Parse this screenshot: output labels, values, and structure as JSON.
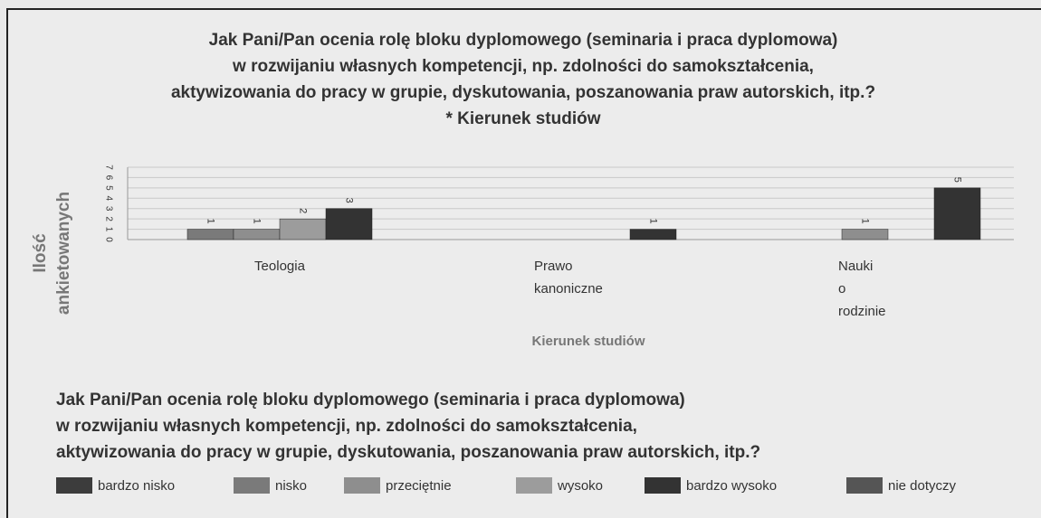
{
  "chart_data": {
    "type": "bar",
    "title": [
      "Jak Pani/Pan ocenia rolę bloku dyplomowego (seminaria i praca dyplomowa)",
      "w rozwijaniu własnych kompetencji, np. zdolności do samokształcenia,",
      "aktywizowania do pracy w grupie, dyskutowania, poszanowania praw autorskich, itp.?",
      "* Kierunek studiów"
    ],
    "y_axis_label": [
      "Ilość",
      "ankietowanych"
    ],
    "x_axis_label": "Kierunek studiów",
    "legend_title": [
      "Jak Pani/Pan ocenia rolę bloku dyplomowego (seminaria i praca dyplomowa)",
      "w rozwijaniu własnych kompetencji, np. zdolności do samokształcenia,",
      "aktywizowania do pracy w grupie, dyskutowania, poszanowania praw autorskich, itp.?"
    ],
    "categories": [
      "Teologia",
      "Prawo kanoniczne",
      "Nauki o rodzinie"
    ],
    "series": [
      {
        "name": "bardzo nisko",
        "color": "#3c3c3c",
        "values": [
          null,
          null,
          null
        ]
      },
      {
        "name": "nisko",
        "color": "#7a7a7a",
        "values": [
          1,
          null,
          null
        ]
      },
      {
        "name": "przeciętnie",
        "color": "#8e8e8e",
        "values": [
          1,
          null,
          1
        ]
      },
      {
        "name": "wysoko",
        "color": "#9c9c9c",
        "values": [
          2,
          null,
          null
        ]
      },
      {
        "name": "bardzo wysoko",
        "color": "#333333",
        "values": [
          3,
          1,
          5
        ]
      },
      {
        "name": "nie dotyczy",
        "color": "#555555",
        "values": [
          null,
          null,
          null
        ]
      }
    ],
    "ylim": [
      0,
      7
    ],
    "yticks": [
      0,
      1,
      2,
      3,
      4,
      5,
      6,
      7
    ],
    "grid": true
  }
}
